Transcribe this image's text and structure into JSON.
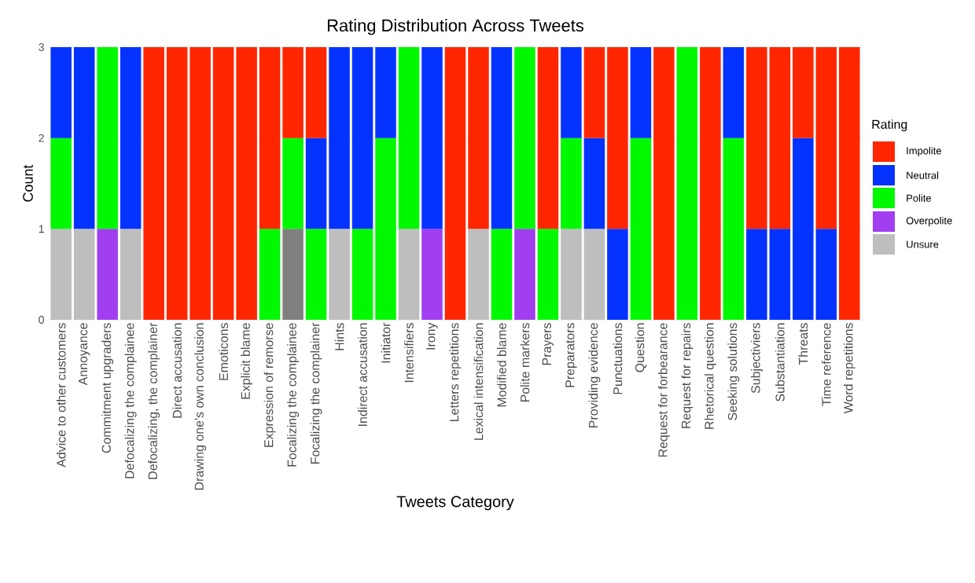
{
  "chart_data": {
    "type": "bar",
    "stacked": true,
    "title": "Rating Distribution Across Tweets",
    "xlabel": "Tweets Category",
    "ylabel": "Count",
    "legend_title": "Rating",
    "legend": "right",
    "grid": "y",
    "categories": [
      "Advice to other customers",
      "Annoyance",
      "Commitment upgraders",
      "Defocalizing the complainee",
      "Defocalizing, the complainer",
      "Direct accusation",
      "Drawing one's own conclusion",
      "Emoticons",
      "Explicit blame",
      "Expression of remorse",
      "Focalizing the complainee",
      "Focalizing the complainer",
      "Hints",
      "Indirect accusation",
      "Initiator",
      "Intensifiers",
      "Irony",
      "Letters repetitions",
      "Lexical intensification",
      "Modified blame",
      "Polite markers",
      "Prayers",
      "Preparators",
      "Providing evidence",
      "Punctuations",
      "Question",
      "Request for forbearance",
      "Request for repairs",
      "Rhetorical question",
      "Seeking solutions",
      "Subjectiviers",
      "Substantiation",
      "Threats",
      "Time reference",
      "Word repetitions"
    ],
    "ylim": [
      0,
      3
    ],
    "yticks": [
      0,
      1,
      2,
      3
    ],
    "series": [
      {
        "color": "#7f7f7f",
        "values": [
          0,
          0,
          0,
          0,
          0,
          0,
          0,
          0,
          0,
          0,
          1,
          0,
          0,
          0,
          0,
          0,
          0,
          0,
          0,
          0,
          0,
          0,
          0,
          0,
          0,
          0,
          0,
          0,
          0,
          0,
          0,
          0,
          0,
          0,
          0
        ]
      },
      {
        "name": "Unsure",
        "color": "#bebebe",
        "values": [
          1,
          1,
          0,
          1,
          0,
          0,
          0,
          0,
          0,
          0,
          0,
          0,
          1,
          0,
          0,
          1,
          0,
          0,
          1,
          0,
          0,
          0,
          1,
          1,
          0,
          0,
          0,
          0,
          0,
          0,
          0,
          0,
          0,
          0,
          0
        ]
      },
      {
        "name": "Overpolite",
        "color": "#a03ef0",
        "values": [
          0,
          0,
          1,
          0,
          0,
          0,
          0,
          0,
          0,
          0,
          0,
          0,
          0,
          0,
          0,
          0,
          1,
          0,
          0,
          0,
          1,
          0,
          0,
          0,
          0,
          0,
          0,
          0,
          0,
          0,
          0,
          0,
          0,
          0,
          0
        ]
      },
      {
        "name": "Polite",
        "color": "#00f900",
        "values": [
          1,
          0,
          2,
          0,
          0,
          0,
          0,
          0,
          0,
          1,
          1,
          1,
          0,
          1,
          2,
          2,
          0,
          0,
          0,
          1,
          2,
          1,
          1,
          0,
          0,
          2,
          0,
          3,
          0,
          2,
          0,
          0,
          0,
          0,
          0
        ]
      },
      {
        "name": "Neutral",
        "color": "#0433ff",
        "values": [
          1,
          2,
          0,
          2,
          0,
          0,
          0,
          0,
          0,
          0,
          0,
          1,
          2,
          2,
          1,
          0,
          2,
          0,
          0,
          2,
          0,
          0,
          1,
          1,
          1,
          1,
          0,
          0,
          0,
          1,
          1,
          1,
          2,
          1,
          0
        ]
      },
      {
        "name": "Impolite",
        "color": "#ff2600",
        "values": [
          0,
          0,
          0,
          0,
          3,
          3,
          3,
          3,
          3,
          2,
          1,
          1,
          0,
          0,
          0,
          0,
          0,
          3,
          2,
          0,
          0,
          2,
          0,
          1,
          2,
          0,
          3,
          0,
          3,
          0,
          2,
          2,
          1,
          2,
          3
        ]
      }
    ]
  }
}
